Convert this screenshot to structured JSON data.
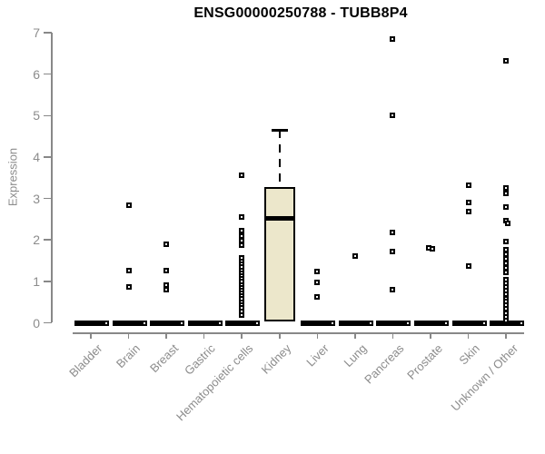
{
  "title": "ENSG00000250788 - TUBB8P4",
  "colors": {
    "background": "#FFFFFF",
    "title": "#000000",
    "axis": "#888888",
    "tick_label": "#8C8C8C",
    "box_fill": "#ECE7CB",
    "box_border": "#000000",
    "marker_border": "#000000",
    "marker_fill": "#FFFFFF"
  },
  "chart_data": {
    "type": "boxplot",
    "title": "ENSG00000250788 - TUBB8P4",
    "xlabel": "",
    "ylabel": "Expression",
    "ylim": [
      0,
      7
    ],
    "yticks": [
      0,
      1,
      2,
      3,
      4,
      5,
      6,
      7
    ],
    "grid": false,
    "legend": false,
    "categories": [
      "Bladder",
      "Brain",
      "Breast",
      "Gastric",
      "Hematopoietic cells",
      "Kidney",
      "Liver",
      "Lung",
      "Pancreas",
      "Prostate",
      "Skin",
      "Unknown / Other"
    ],
    "series": [
      {
        "name": "Bladder",
        "zero_bar": true,
        "zero_notch": true,
        "points": []
      },
      {
        "name": "Brain",
        "zero_bar": true,
        "zero_notch": true,
        "points": [
          [
            2.83,
            0
          ],
          [
            1.27,
            0
          ],
          [
            0.87,
            0
          ]
        ]
      },
      {
        "name": "Breast",
        "zero_bar": true,
        "zero_notch": true,
        "points": [
          [
            1.89,
            0
          ],
          [
            1.27,
            0
          ],
          [
            0.9,
            0
          ],
          [
            0.81,
            0
          ]
        ]
      },
      {
        "name": "Gastric",
        "zero_bar": true,
        "zero_notch": true,
        "points": []
      },
      {
        "name": "Hematopoietic cells",
        "zero_bar": true,
        "zero_notch": true,
        "points": [
          [
            3.55,
            0
          ],
          [
            2.56,
            0
          ],
          [
            2.22,
            0
          ],
          [
            2.1,
            0
          ],
          [
            1.99,
            0
          ],
          [
            1.88,
            0
          ],
          [
            1.56,
            0
          ],
          [
            1.48,
            0
          ],
          [
            1.41,
            0
          ],
          [
            1.34,
            0
          ],
          [
            1.27,
            0
          ],
          [
            1.2,
            0
          ],
          [
            1.13,
            0
          ],
          [
            1.06,
            0
          ],
          [
            0.99,
            0
          ],
          [
            0.92,
            0
          ],
          [
            0.85,
            0
          ],
          [
            0.78,
            0
          ],
          [
            0.71,
            0
          ],
          [
            0.64,
            0
          ],
          [
            0.57,
            0
          ],
          [
            0.5,
            0
          ],
          [
            0.43,
            0
          ],
          [
            0.36,
            0
          ],
          [
            0.27,
            0
          ],
          [
            0.18,
            0
          ]
        ],
        "note": ""
      },
      {
        "name": "Kidney",
        "zero_bar": false,
        "zero_notch": false,
        "box": {
          "q1": 0.03,
          "median": 2.53,
          "q3": 3.28,
          "whisker_high": 4.65,
          "whisker_low": 0.03
        },
        "points": []
      },
      {
        "name": "Liver",
        "zero_bar": true,
        "zero_notch": true,
        "points": [
          [
            1.24,
            0
          ],
          [
            0.98,
            0
          ],
          [
            0.62,
            0
          ]
        ]
      },
      {
        "name": "Lung",
        "zero_bar": true,
        "zero_notch": true,
        "points": [
          [
            1.6,
            0
          ]
        ]
      },
      {
        "name": "Pancreas",
        "zero_bar": true,
        "zero_notch": true,
        "points": [
          [
            6.84,
            0
          ],
          [
            5.0,
            0
          ],
          [
            2.17,
            0
          ],
          [
            1.71,
            0
          ],
          [
            0.8,
            0
          ]
        ]
      },
      {
        "name": "Prostate",
        "zero_bar": true,
        "zero_notch": true,
        "points": [
          [
            1.8,
            -2
          ],
          [
            1.78,
            2
          ]
        ]
      },
      {
        "name": "Skin",
        "zero_bar": true,
        "zero_notch": true,
        "points": [
          [
            3.33,
            0
          ],
          [
            2.91,
            0
          ],
          [
            2.69,
            0
          ],
          [
            1.38,
            0
          ]
        ]
      },
      {
        "name": "Unknown / Other",
        "zero_bar": true,
        "zero_notch": true,
        "points": [
          [
            6.33,
            0
          ],
          [
            3.26,
            0
          ],
          [
            3.12,
            0
          ],
          [
            2.8,
            0
          ],
          [
            2.46,
            0
          ],
          [
            2.4,
            2
          ],
          [
            1.97,
            0
          ],
          [
            1.76,
            0
          ],
          [
            1.65,
            0
          ],
          [
            1.54,
            0
          ],
          [
            1.44,
            0
          ],
          [
            1.33,
            0
          ],
          [
            1.22,
            0
          ],
          [
            1.04,
            0
          ],
          [
            0.95,
            0
          ],
          [
            0.86,
            0
          ],
          [
            0.77,
            0
          ],
          [
            0.68,
            0
          ],
          [
            0.59,
            0
          ],
          [
            0.51,
            0
          ],
          [
            0.42,
            0
          ],
          [
            0.33,
            0
          ],
          [
            0.24,
            0
          ],
          [
            0.15,
            0
          ],
          [
            0.05,
            0
          ]
        ]
      }
    ]
  }
}
